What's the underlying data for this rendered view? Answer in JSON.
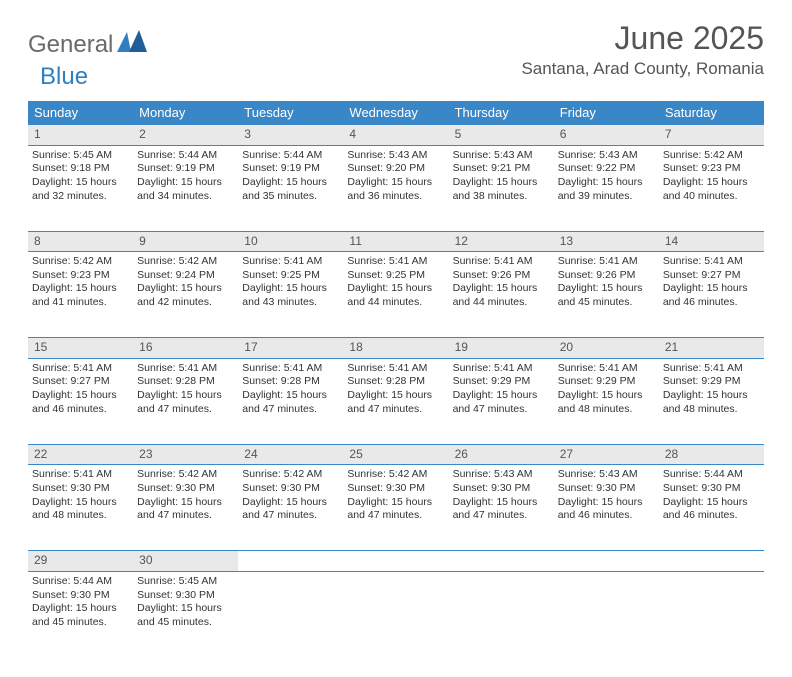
{
  "brand": {
    "part1": "General",
    "part2": "Blue"
  },
  "title": "June 2025",
  "location": "Santana, Arad County, Romania",
  "header_bg": "#3a87c8",
  "daynum_bg": "#e9e9e9",
  "border_color": "#3a87c8",
  "text_color": "#333333",
  "title_color": "#555555",
  "weekdays": [
    "Sunday",
    "Monday",
    "Tuesday",
    "Wednesday",
    "Thursday",
    "Friday",
    "Saturday"
  ],
  "weeks": [
    [
      {
        "n": "1",
        "sr": "5:45 AM",
        "ss": "9:18 PM",
        "dl": "15 hours and 32 minutes."
      },
      {
        "n": "2",
        "sr": "5:44 AM",
        "ss": "9:19 PM",
        "dl": "15 hours and 34 minutes."
      },
      {
        "n": "3",
        "sr": "5:44 AM",
        "ss": "9:19 PM",
        "dl": "15 hours and 35 minutes."
      },
      {
        "n": "4",
        "sr": "5:43 AM",
        "ss": "9:20 PM",
        "dl": "15 hours and 36 minutes."
      },
      {
        "n": "5",
        "sr": "5:43 AM",
        "ss": "9:21 PM",
        "dl": "15 hours and 38 minutes."
      },
      {
        "n": "6",
        "sr": "5:43 AM",
        "ss": "9:22 PM",
        "dl": "15 hours and 39 minutes."
      },
      {
        "n": "7",
        "sr": "5:42 AM",
        "ss": "9:23 PM",
        "dl": "15 hours and 40 minutes."
      }
    ],
    [
      {
        "n": "8",
        "sr": "5:42 AM",
        "ss": "9:23 PM",
        "dl": "15 hours and 41 minutes."
      },
      {
        "n": "9",
        "sr": "5:42 AM",
        "ss": "9:24 PM",
        "dl": "15 hours and 42 minutes."
      },
      {
        "n": "10",
        "sr": "5:41 AM",
        "ss": "9:25 PM",
        "dl": "15 hours and 43 minutes."
      },
      {
        "n": "11",
        "sr": "5:41 AM",
        "ss": "9:25 PM",
        "dl": "15 hours and 44 minutes."
      },
      {
        "n": "12",
        "sr": "5:41 AM",
        "ss": "9:26 PM",
        "dl": "15 hours and 44 minutes."
      },
      {
        "n": "13",
        "sr": "5:41 AM",
        "ss": "9:26 PM",
        "dl": "15 hours and 45 minutes."
      },
      {
        "n": "14",
        "sr": "5:41 AM",
        "ss": "9:27 PM",
        "dl": "15 hours and 46 minutes."
      }
    ],
    [
      {
        "n": "15",
        "sr": "5:41 AM",
        "ss": "9:27 PM",
        "dl": "15 hours and 46 minutes."
      },
      {
        "n": "16",
        "sr": "5:41 AM",
        "ss": "9:28 PM",
        "dl": "15 hours and 47 minutes."
      },
      {
        "n": "17",
        "sr": "5:41 AM",
        "ss": "9:28 PM",
        "dl": "15 hours and 47 minutes."
      },
      {
        "n": "18",
        "sr": "5:41 AM",
        "ss": "9:28 PM",
        "dl": "15 hours and 47 minutes."
      },
      {
        "n": "19",
        "sr": "5:41 AM",
        "ss": "9:29 PM",
        "dl": "15 hours and 47 minutes."
      },
      {
        "n": "20",
        "sr": "5:41 AM",
        "ss": "9:29 PM",
        "dl": "15 hours and 48 minutes."
      },
      {
        "n": "21",
        "sr": "5:41 AM",
        "ss": "9:29 PM",
        "dl": "15 hours and 48 minutes."
      }
    ],
    [
      {
        "n": "22",
        "sr": "5:41 AM",
        "ss": "9:30 PM",
        "dl": "15 hours and 48 minutes."
      },
      {
        "n": "23",
        "sr": "5:42 AM",
        "ss": "9:30 PM",
        "dl": "15 hours and 47 minutes."
      },
      {
        "n": "24",
        "sr": "5:42 AM",
        "ss": "9:30 PM",
        "dl": "15 hours and 47 minutes."
      },
      {
        "n": "25",
        "sr": "5:42 AM",
        "ss": "9:30 PM",
        "dl": "15 hours and 47 minutes."
      },
      {
        "n": "26",
        "sr": "5:43 AM",
        "ss": "9:30 PM",
        "dl": "15 hours and 47 minutes."
      },
      {
        "n": "27",
        "sr": "5:43 AM",
        "ss": "9:30 PM",
        "dl": "15 hours and 46 minutes."
      },
      {
        "n": "28",
        "sr": "5:44 AM",
        "ss": "9:30 PM",
        "dl": "15 hours and 46 minutes."
      }
    ],
    [
      {
        "n": "29",
        "sr": "5:44 AM",
        "ss": "9:30 PM",
        "dl": "15 hours and 45 minutes."
      },
      {
        "n": "30",
        "sr": "5:45 AM",
        "ss": "9:30 PM",
        "dl": "15 hours and 45 minutes."
      },
      null,
      null,
      null,
      null,
      null
    ]
  ],
  "labels": {
    "sunrise": "Sunrise:",
    "sunset": "Sunset:",
    "daylight": "Daylight:"
  }
}
